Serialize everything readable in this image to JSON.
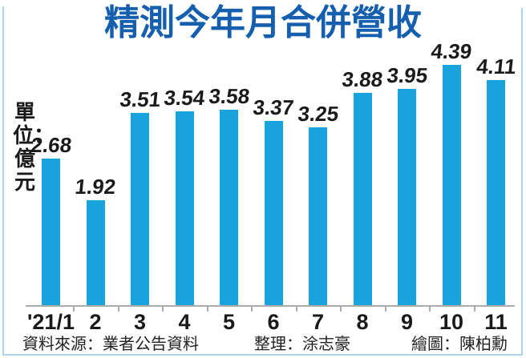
{
  "chart_data": {
    "type": "bar",
    "title": "精測今年月合併營收",
    "ylabel": "單位：億元",
    "categories": [
      "'21/1",
      "2",
      "3",
      "4",
      "5",
      "6",
      "7",
      "8",
      "9",
      "10",
      "11"
    ],
    "values": [
      2.68,
      1.92,
      3.51,
      3.54,
      3.58,
      3.37,
      3.25,
      3.88,
      3.95,
      4.39,
      4.11
    ],
    "value_labels_shown": true,
    "grid": "off",
    "legend": "none",
    "ylim": [
      0,
      4.5
    ]
  },
  "footer": {
    "source": "資料來源：業者公告資料",
    "editor": "整理：涂志豪",
    "illustrator": "繪圖：陳柏勳"
  },
  "colors": {
    "title": "#155FAE",
    "bar": "#19A3DD",
    "axis": "#ACACAC",
    "frame": "#A9D4EC",
    "text": "#1A1A1A"
  }
}
